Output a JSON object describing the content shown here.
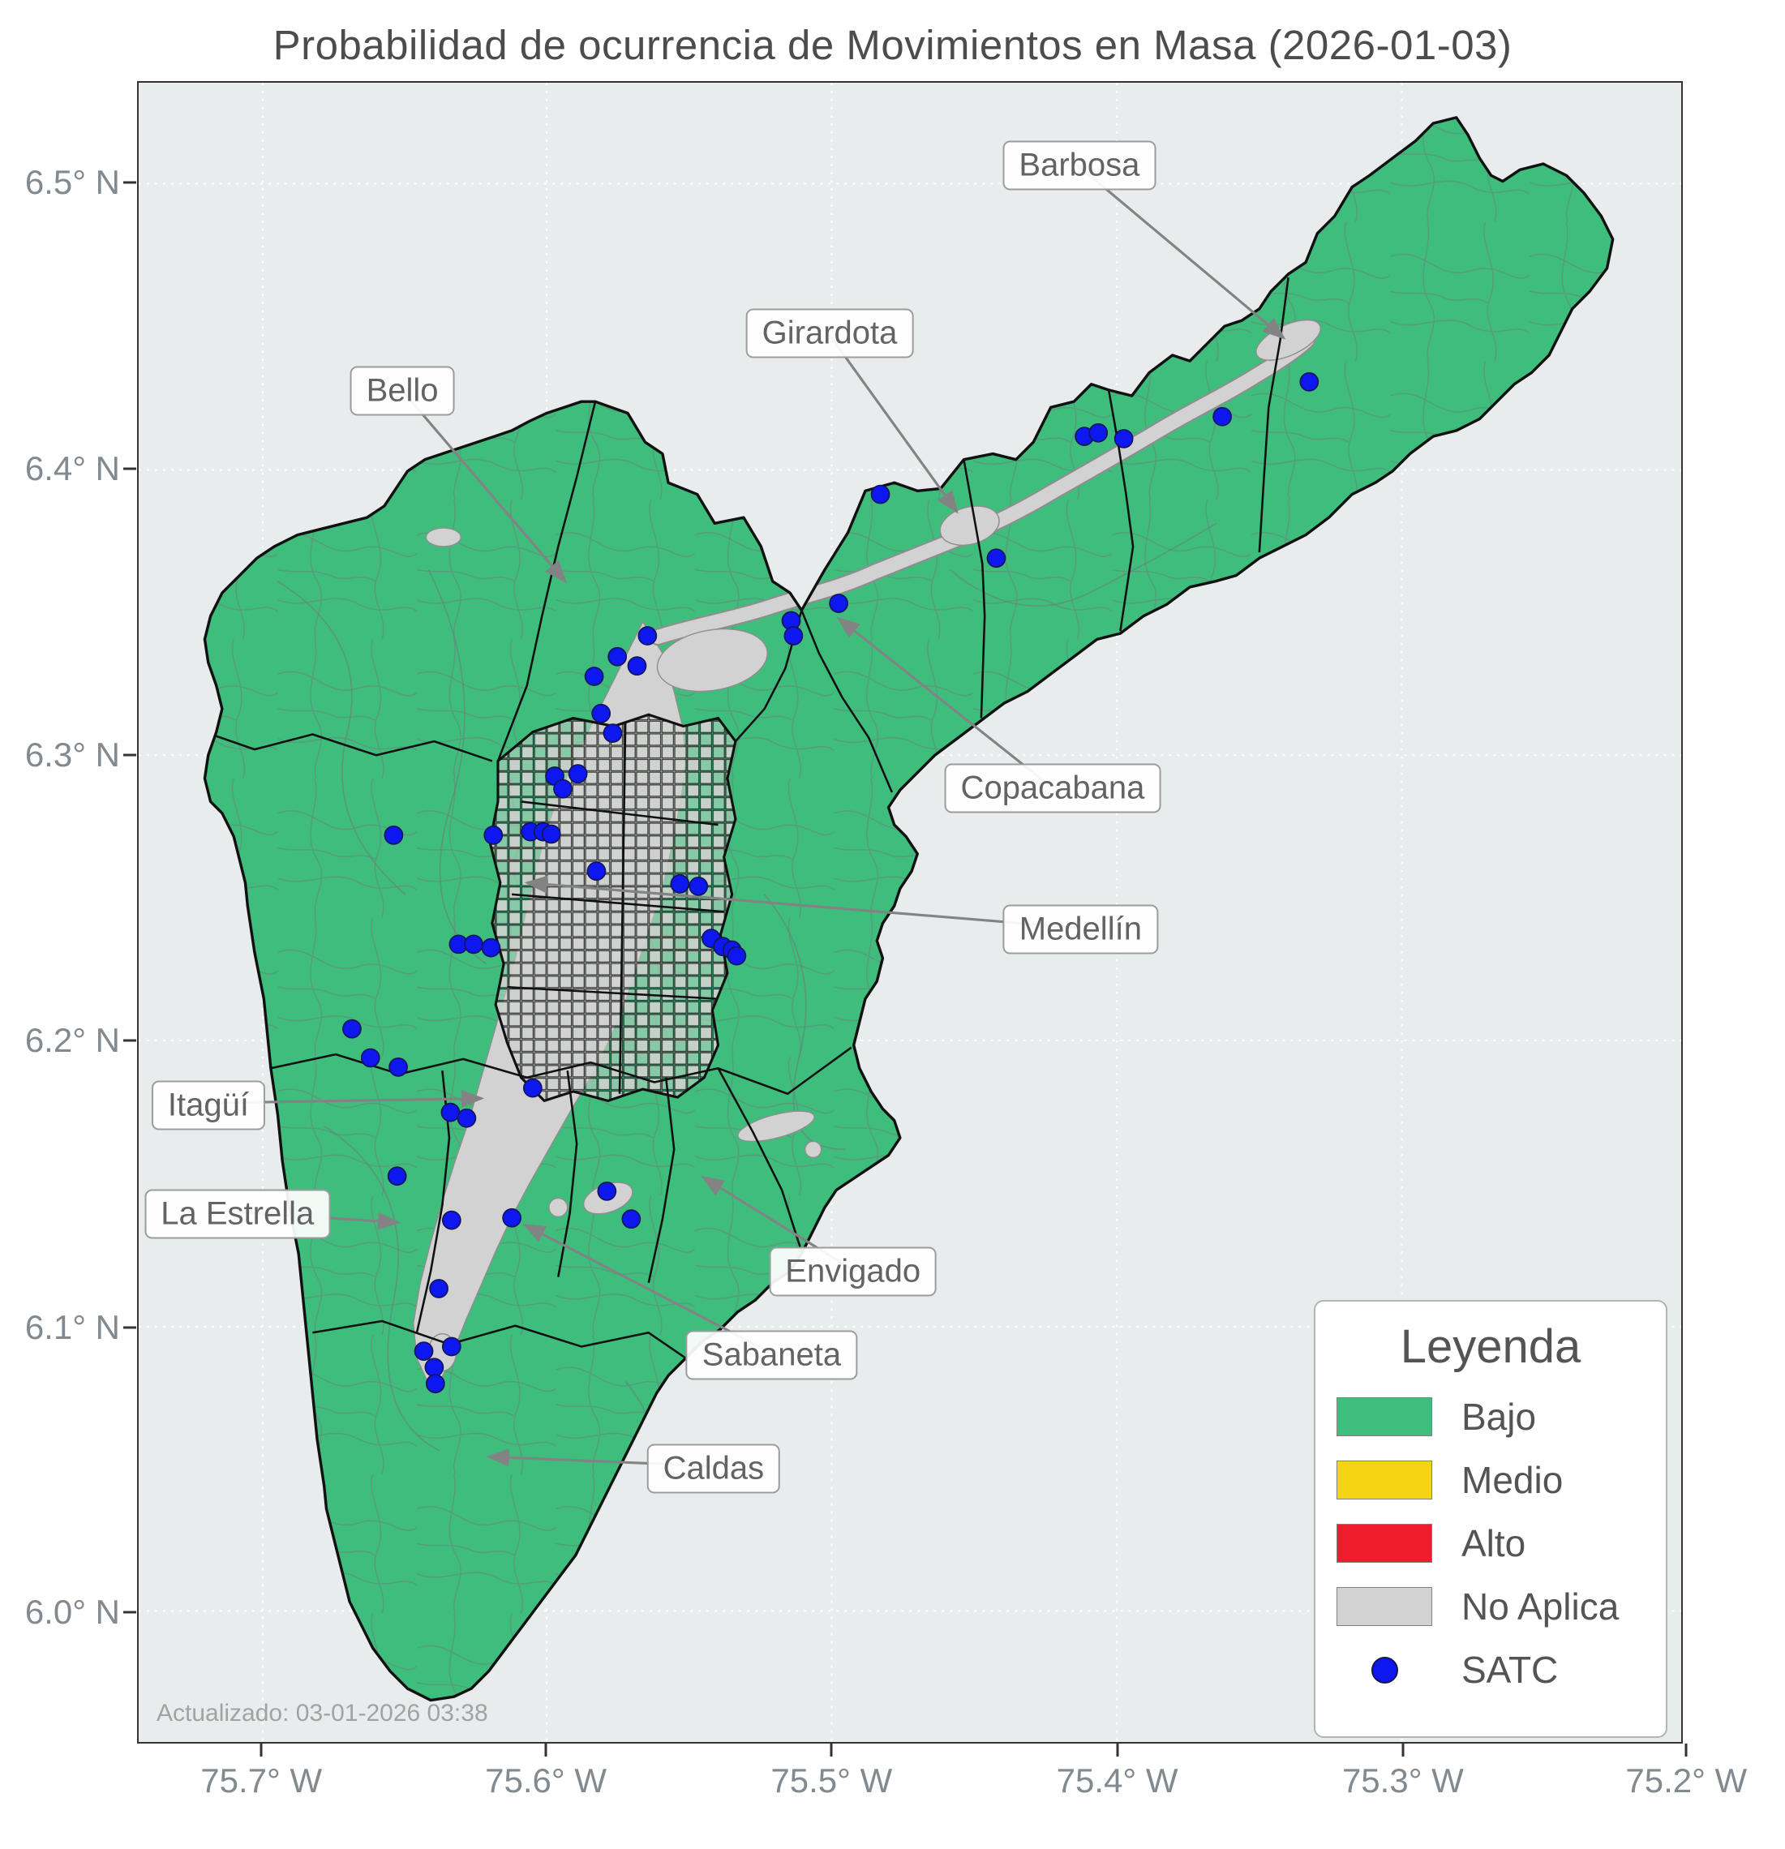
{
  "title": "Probabilidad de ocurrencia de Movimientos en Masa (2026-01-03)",
  "updated": "Actualizado: 03-01-2026 03:38",
  "axes": {
    "y_ticks": [
      {
        "label": "6.5° N",
        "y": 87
      },
      {
        "label": "6.4° N",
        "y": 334
      },
      {
        "label": "6.3° N",
        "y": 580
      },
      {
        "label": "6.2° N",
        "y": 826
      },
      {
        "label": "6.1° N",
        "y": 1073
      },
      {
        "label": "6.0° N",
        "y": 1318
      }
    ],
    "x_ticks": [
      {
        "label": "75.7° W",
        "x": 107
      },
      {
        "label": "75.6° W",
        "x": 352
      },
      {
        "label": "75.5° W",
        "x": 598
      },
      {
        "label": "75.4° W",
        "x": 844
      },
      {
        "label": "75.3° W",
        "x": 1090
      },
      {
        "label": "75.2° W",
        "x": 1334
      }
    ]
  },
  "legend": {
    "title": "Leyenda",
    "items": [
      {
        "label": "Bajo",
        "marker": "swatch",
        "color": "#3ebd7d"
      },
      {
        "label": "Medio",
        "marker": "swatch",
        "color": "#f5d414"
      },
      {
        "label": "Alto",
        "marker": "swatch",
        "color": "#ee1c2c"
      },
      {
        "label": "No Aplica",
        "marker": "swatch",
        "color": "#d2d2d2"
      },
      {
        "label": "SATC",
        "marker": "dot",
        "color": "#0d18f0"
      }
    ]
  },
  "map": {
    "municipality_labels": [
      {
        "name": "Barbosa",
        "lx": 810,
        "ly": 71,
        "tx": 988,
        "ty": 220
      },
      {
        "name": "Girardota",
        "lx": 595,
        "ly": 216,
        "tx": 706,
        "ty": 370
      },
      {
        "name": "Bello",
        "lx": 227,
        "ly": 265,
        "tx": 368,
        "ty": 430
      },
      {
        "name": "Copacabana",
        "lx": 787,
        "ly": 607,
        "tx": 604,
        "ty": 462
      },
      {
        "name": "Medellín",
        "lx": 811,
        "ly": 729,
        "tx": 335,
        "ty": 690
      },
      {
        "name": "Itagüí",
        "lx": 60,
        "ly": 880,
        "tx": 296,
        "ty": 876
      },
      {
        "name": "La Estrella",
        "lx": 85,
        "ly": 974,
        "tx": 224,
        "ty": 983
      },
      {
        "name": "Envigado",
        "lx": 615,
        "ly": 1023,
        "tx": 487,
        "ty": 944
      },
      {
        "name": "Sabaneta",
        "lx": 545,
        "ly": 1095,
        "tx": 333,
        "ty": 985
      },
      {
        "name": "Caldas",
        "lx": 495,
        "ly": 1193,
        "tx": 302,
        "ty": 1185
      }
    ],
    "satc_points": [
      [
        1010,
        258
      ],
      [
        935,
        288
      ],
      [
        816,
        305
      ],
      [
        828,
        302
      ],
      [
        850,
        307
      ],
      [
        640,
        355
      ],
      [
        740,
        410
      ],
      [
        604,
        449
      ],
      [
        563,
        464
      ],
      [
        565,
        477
      ],
      [
        439,
        477
      ],
      [
        413,
        495
      ],
      [
        430,
        503
      ],
      [
        393,
        512
      ],
      [
        399,
        544
      ],
      [
        409,
        561
      ],
      [
        359,
        598
      ],
      [
        379,
        596
      ],
      [
        366,
        609
      ],
      [
        220,
        649
      ],
      [
        306,
        649
      ],
      [
        338,
        646
      ],
      [
        349,
        646
      ],
      [
        356,
        648
      ],
      [
        395,
        680
      ],
      [
        467,
        691
      ],
      [
        483,
        693
      ],
      [
        494,
        738
      ],
      [
        504,
        745
      ],
      [
        512,
        748
      ],
      [
        516,
        753
      ],
      [
        276,
        743
      ],
      [
        289,
        743
      ],
      [
        304,
        746
      ],
      [
        184,
        816
      ],
      [
        200,
        841
      ],
      [
        224,
        849
      ],
      [
        340,
        867
      ],
      [
        269,
        888
      ],
      [
        283,
        893
      ],
      [
        223,
        943
      ],
      [
        404,
        956
      ],
      [
        425,
        980
      ],
      [
        270,
        981
      ],
      [
        322,
        979
      ],
      [
        259,
        1040
      ],
      [
        246,
        1094
      ],
      [
        270,
        1090
      ],
      [
        255,
        1108
      ],
      [
        256,
        1122
      ]
    ]
  },
  "colors": {
    "bajo": "#3ebd7d",
    "medio": "#f5d414",
    "alto": "#ee1c2c",
    "no_aplica": "#d2d2d2",
    "satc": "#0d18f0"
  }
}
